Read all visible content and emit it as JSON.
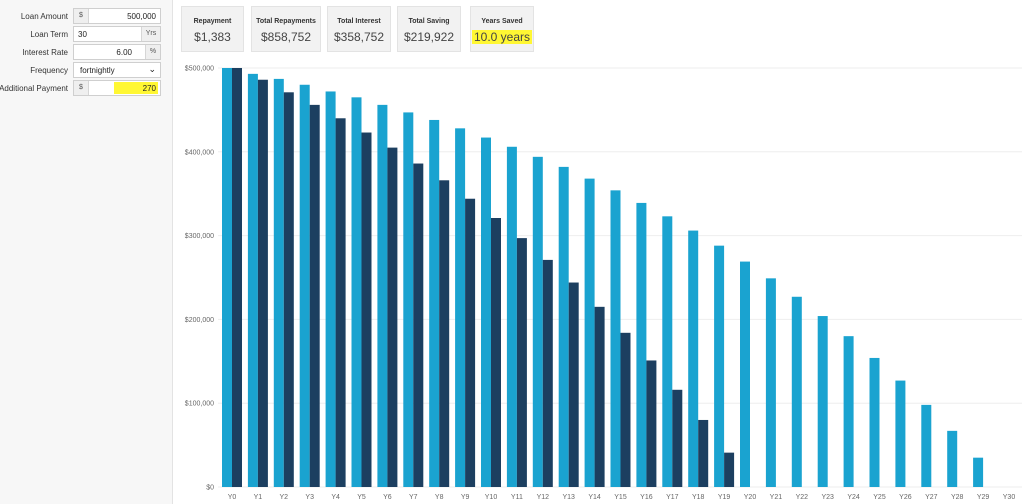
{
  "form": {
    "loan_amount": {
      "label": "Loan Amount",
      "prefix": "$",
      "value": "500,000"
    },
    "loan_term": {
      "label": "Loan Term",
      "value": "30",
      "suffix": "Yrs"
    },
    "interest_rate": {
      "label": "Interest Rate",
      "value": "6.00",
      "suffix": "%"
    },
    "frequency": {
      "label": "Frequency",
      "value": "fortnightly",
      "arrow": "⌄"
    },
    "additional_payment": {
      "label": "Additional Payment",
      "prefix": "$",
      "value": "270"
    }
  },
  "stats": [
    {
      "title": "Repayment",
      "value": "$1,383"
    },
    {
      "title": "Total Repayments",
      "value": "$858,752"
    },
    {
      "title": "Total Interest",
      "value": "$358,752"
    },
    {
      "title": "Total Saving",
      "value": "$219,922"
    },
    {
      "title": "Years Saved",
      "value": "10.0 years"
    }
  ],
  "colors": {
    "standard": "#1aa3d0",
    "additional": "#1c3f60",
    "highlight": "#fff733"
  },
  "chart_data": {
    "type": "bar",
    "categories": [
      "Y0",
      "Y1",
      "Y2",
      "Y3",
      "Y4",
      "Y5",
      "Y6",
      "Y7",
      "Y8",
      "Y9",
      "Y10",
      "Y11",
      "Y12",
      "Y13",
      "Y14",
      "Y15",
      "Y16",
      "Y17",
      "Y18",
      "Y19",
      "Y20",
      "Y21",
      "Y22",
      "Y23",
      "Y24",
      "Y25",
      "Y26",
      "Y27",
      "Y28",
      "Y29",
      "Y30"
    ],
    "series": [
      {
        "values": [
          500000,
          493000,
          487000,
          480000,
          472000,
          465000,
          456000,
          447000,
          438000,
          428000,
          417000,
          406000,
          394000,
          382000,
          368000,
          354000,
          339000,
          323000,
          306000,
          288000,
          269000,
          249000,
          227000,
          204000,
          180000,
          154000,
          127000,
          98000,
          67000,
          35000,
          0
        ]
      },
      {
        "values": [
          500000,
          486000,
          471000,
          456000,
          440000,
          423000,
          405000,
          386000,
          366000,
          344000,
          321000,
          297000,
          271000,
          244000,
          215000,
          184000,
          151000,
          116000,
          80000,
          41000,
          0,
          0,
          0,
          0,
          0,
          0,
          0,
          0,
          0,
          0,
          0
        ]
      }
    ],
    "yticks": [
      "$0",
      "$100,000",
      "$200,000",
      "$300,000",
      "$400,000",
      "$500,000"
    ],
    "ylim": [
      0,
      500000
    ],
    "grid": true
  }
}
